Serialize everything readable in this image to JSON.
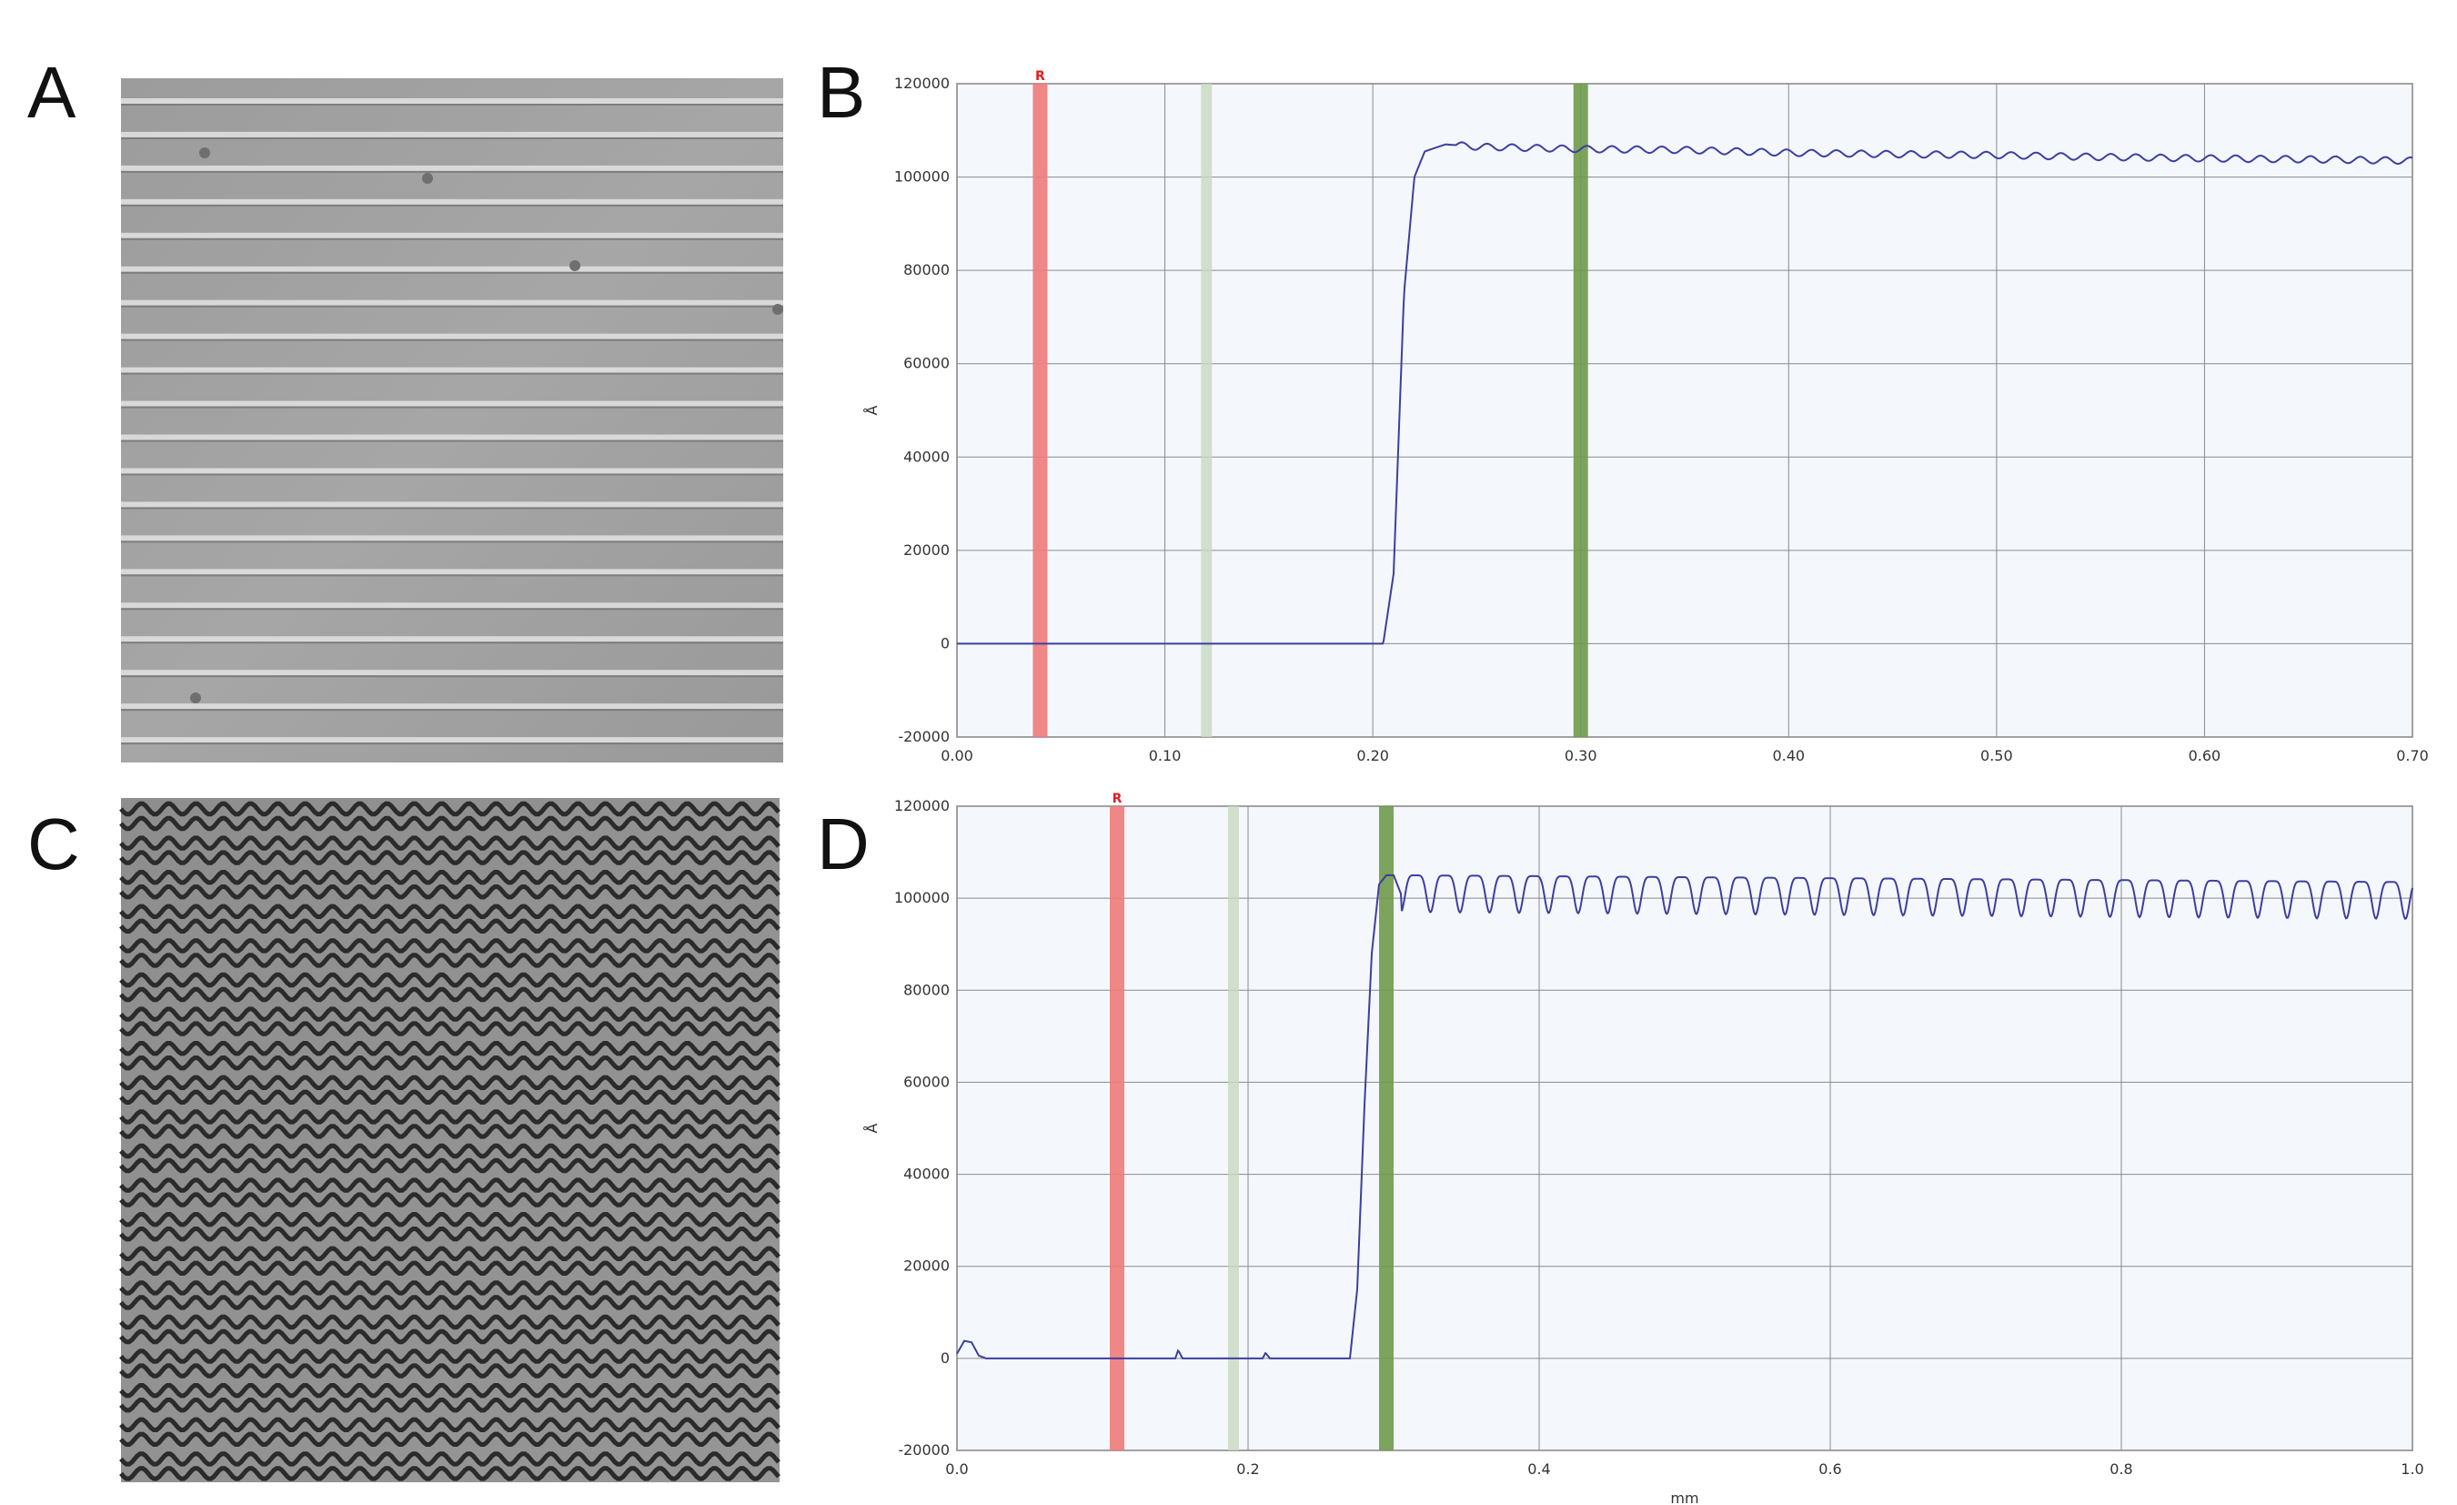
{
  "panels": {
    "a": {
      "letter": "A",
      "image": "straight-channel-micrograph",
      "channel_shape": "straight",
      "channel_count": 20
    },
    "b": {
      "letter": "B"
    },
    "c": {
      "letter": "C",
      "image": "wavy-channel-micrograph",
      "channel_shape": "wavy",
      "channel_count": 20
    },
    "d": {
      "letter": "D"
    }
  },
  "colors": {
    "cursor_red": "#f07a7a",
    "cursor_green": "#6f9a4a",
    "cursor_light": "#c9d8c0",
    "trace": "#3e3ea0",
    "plot_bg": "#f4f8fc",
    "grid": "#8a8a8a"
  },
  "chart_data": [
    {
      "id": "B",
      "type": "line",
      "title": "",
      "xlabel": "",
      "ylabel": "Å",
      "xlim": [
        0,
        0.7
      ],
      "ylim": [
        -20000,
        120000
      ],
      "xticks": [
        "0.00",
        "0.10",
        "0.20",
        "0.30",
        "0.40",
        "0.50",
        "0.60",
        "0.70"
      ],
      "yticks": [
        "-20000",
        "0",
        "20000",
        "40000",
        "60000",
        "80000",
        "100000",
        "120000"
      ],
      "grid": true,
      "cursors": [
        {
          "label": "R",
          "x": 0.04,
          "color": "red"
        },
        {
          "label": "",
          "x": 0.12,
          "color": "light"
        },
        {
          "label": "",
          "x": 0.3,
          "color": "green"
        }
      ],
      "series": [
        {
          "x": [
            0.0,
            0.05,
            0.1,
            0.15,
            0.18,
            0.205,
            0.21,
            0.215,
            0.22,
            0.225,
            0.235,
            0.25,
            0.3,
            0.35,
            0.4,
            0.45,
            0.5,
            0.55,
            0.6,
            0.65,
            0.7
          ],
          "y": [
            0,
            0,
            0,
            0,
            0,
            0,
            15000,
            75000,
            100000,
            105500,
            107000,
            106500,
            106000,
            105800,
            105200,
            104900,
            104700,
            104300,
            104000,
            103800,
            103500
          ],
          "ripple": {
            "amplitude": 700,
            "period": 0.012,
            "start": 0.24
          }
        }
      ]
    },
    {
      "id": "D",
      "type": "line",
      "title": "",
      "xlabel": "mm",
      "ylabel": "Å",
      "xlim": [
        0,
        1.0
      ],
      "ylim": [
        -20000,
        120000
      ],
      "xticks": [
        "0.0",
        "0.2",
        "0.4",
        "0.6",
        "0.8",
        "1.0"
      ],
      "yticks": [
        "-20000",
        "0",
        "20000",
        "40000",
        "60000",
        "80000",
        "100000",
        "120000"
      ],
      "grid": true,
      "cursors": [
        {
          "label": "R",
          "x": 0.11,
          "color": "red"
        },
        {
          "label": "",
          "x": 0.19,
          "color": "light"
        },
        {
          "label": "",
          "x": 0.295,
          "color": "green"
        }
      ],
      "series": [
        {
          "x": [
            0.0,
            0.005,
            0.01,
            0.015,
            0.02,
            0.1,
            0.15,
            0.152,
            0.155,
            0.21,
            0.212,
            0.215,
            0.27,
            0.275,
            0.28,
            0.285,
            0.29,
            0.295,
            0.3,
            0.31
          ],
          "y": [
            1000,
            3800,
            3500,
            600,
            0,
            0,
            0,
            1800,
            0,
            0,
            1200,
            0,
            0,
            15000,
            55000,
            88000,
            103000,
            105000,
            105000,
            97000
          ],
          "oscillation": {
            "top": 105000,
            "bottom": 97000,
            "period": 0.0203,
            "start": 0.305,
            "drift_end": -1500
          }
        }
      ]
    }
  ]
}
